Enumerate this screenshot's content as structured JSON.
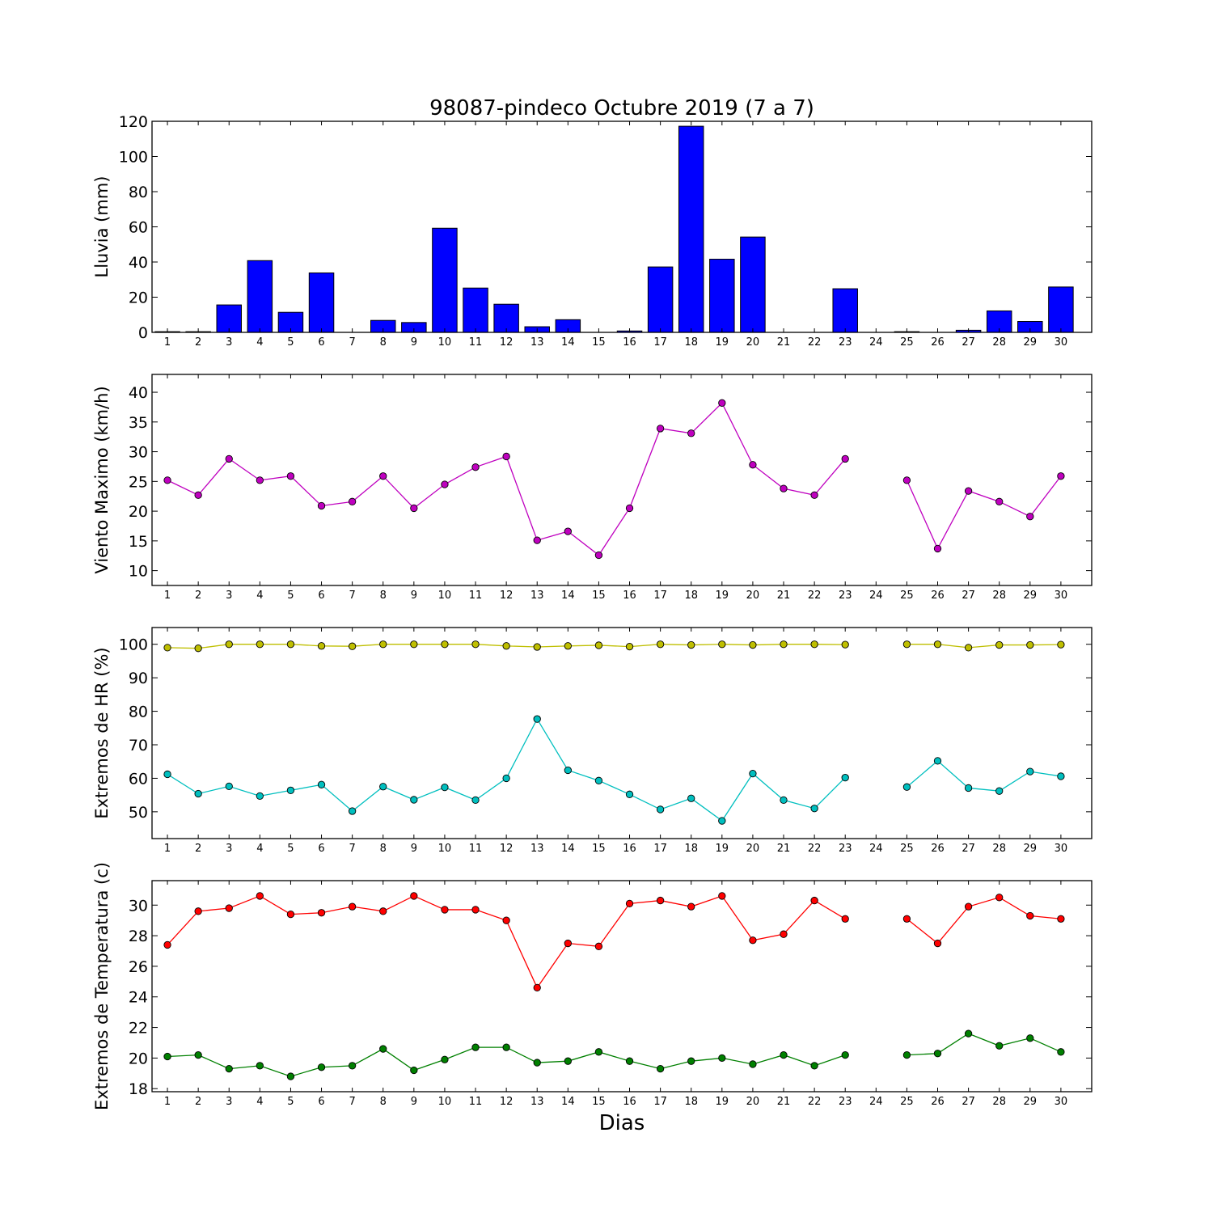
{
  "chart_data": [
    {
      "type": "bar",
      "title": "98087-pindeco Octubre 2019  (7 a 7)",
      "xlabel": "",
      "ylabel": "Lluvia (mm)",
      "categories": [
        "1",
        "2",
        "3",
        "4",
        "5",
        "6",
        "7",
        "8",
        "9",
        "10",
        "11",
        "12",
        "13",
        "14",
        "15",
        "16",
        "17",
        "18",
        "19",
        "20",
        "21",
        "22",
        "23",
        "24",
        "25",
        "26",
        "27",
        "28",
        "29",
        "30"
      ],
      "values": [
        0.4,
        0.4,
        15.6,
        40.8,
        11.4,
        33.8,
        0,
        6.8,
        5.6,
        59.2,
        25.2,
        16,
        3.2,
        7.2,
        0,
        0.8,
        37.2,
        117.2,
        41.6,
        54.2,
        0,
        0,
        24.8,
        null,
        0.4,
        0,
        1.2,
        12.2,
        6.2,
        25.8
      ],
      "ylim": [
        0,
        120
      ],
      "yticks": [
        0,
        20,
        40,
        60,
        80,
        100,
        120
      ],
      "colors": {
        "bar": "#0000ff"
      }
    },
    {
      "type": "line",
      "ylabel": "Viento Maximo (km/h)",
      "categories": [
        "1",
        "2",
        "3",
        "4",
        "5",
        "6",
        "7",
        "8",
        "9",
        "10",
        "11",
        "12",
        "13",
        "14",
        "15",
        "16",
        "17",
        "18",
        "19",
        "20",
        "21",
        "22",
        "23",
        "24",
        "25",
        "26",
        "27",
        "28",
        "29",
        "30"
      ],
      "series": [
        {
          "values": [
            25.2,
            22.7,
            28.8,
            25.2,
            25.9,
            20.9,
            21.6,
            25.9,
            20.5,
            24.5,
            27.4,
            29.2,
            15.1,
            16.6,
            12.6,
            20.5,
            33.9,
            33.1,
            38.2,
            27.8,
            23.8,
            22.7,
            28.8,
            null,
            25.2,
            13.7,
            23.4,
            21.6,
            19.1,
            25.9
          ],
          "color": "#bf00bf"
        }
      ],
      "ylim": [
        7.5,
        43
      ],
      "yticks": [
        10,
        15,
        20,
        25,
        30,
        35,
        40
      ]
    },
    {
      "type": "line",
      "ylabel": "Extremos de HR (%)",
      "categories": [
        "1",
        "2",
        "3",
        "4",
        "5",
        "6",
        "7",
        "8",
        "9",
        "10",
        "11",
        "12",
        "13",
        "14",
        "15",
        "16",
        "17",
        "18",
        "19",
        "20",
        "21",
        "22",
        "23",
        "24",
        "25",
        "26",
        "27",
        "28",
        "29",
        "30"
      ],
      "series": [
        {
          "values": [
            99,
            98.8,
            100,
            100,
            100,
            99.5,
            99.4,
            100,
            100,
            100,
            100,
            99.5,
            99.2,
            99.5,
            99.7,
            99.3,
            100,
            99.8,
            100,
            99.8,
            100,
            100,
            99.9,
            null,
            100,
            100,
            99,
            99.8,
            99.8,
            99.9
          ],
          "color": "#bfbf00"
        },
        {
          "values": [
            61.2,
            55.4,
            57.6,
            54.7,
            56.4,
            58.1,
            50.2,
            57.5,
            53.6,
            57.3,
            53.5,
            60,
            77.7,
            62.4,
            59.3,
            55.2,
            50.7,
            54,
            47.3,
            61.4,
            53.5,
            51,
            60.2,
            null,
            57.4,
            65.2,
            57.1,
            56.2,
            62,
            60.6
          ],
          "color": "#00bfbf"
        }
      ],
      "ylim": [
        42,
        105
      ],
      "yticks": [
        50,
        60,
        70,
        80,
        90,
        100
      ]
    },
    {
      "type": "line",
      "ylabel": "Extremos de Temperatura (c)",
      "xlabel": "Dias",
      "categories": [
        "1",
        "2",
        "3",
        "4",
        "5",
        "6",
        "7",
        "8",
        "9",
        "10",
        "11",
        "12",
        "13",
        "14",
        "15",
        "16",
        "17",
        "18",
        "19",
        "20",
        "21",
        "22",
        "23",
        "24",
        "25",
        "26",
        "27",
        "28",
        "29",
        "30"
      ],
      "series": [
        {
          "values": [
            27.4,
            29.6,
            29.8,
            30.6,
            29.4,
            29.5,
            29.9,
            29.6,
            30.6,
            29.7,
            29.7,
            29,
            24.6,
            27.5,
            27.3,
            30.1,
            30.3,
            29.9,
            30.6,
            27.7,
            28.1,
            30.3,
            29.1,
            null,
            29.1,
            27.5,
            29.9,
            30.5,
            29.3,
            29.1
          ],
          "color": "#ff0000"
        },
        {
          "values": [
            20.1,
            20.2,
            19.3,
            19.5,
            18.8,
            19.4,
            19.5,
            20.6,
            19.2,
            19.9,
            20.7,
            20.7,
            19.7,
            19.8,
            20.4,
            19.8,
            19.3,
            19.8,
            20,
            19.6,
            20.2,
            19.5,
            20.2,
            null,
            20.2,
            20.3,
            21.6,
            20.8,
            21.3,
            20.4
          ],
          "color": "#008000"
        }
      ],
      "ylim": [
        17.8,
        31.6
      ],
      "yticks": [
        18,
        20,
        22,
        24,
        26,
        28,
        30
      ]
    }
  ]
}
